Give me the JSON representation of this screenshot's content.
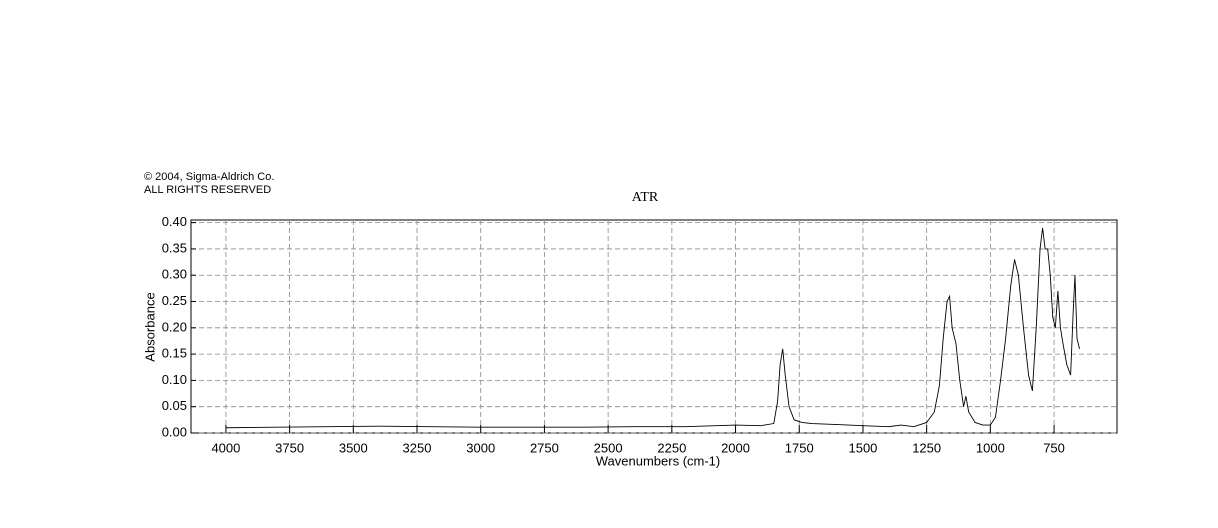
{
  "chart_data": {
    "type": "line",
    "title": "ATR",
    "annotations": [
      "© 2004, Sigma-Aldrich Co.",
      "ALL RIGHTS RESERVED"
    ],
    "xlabel": "Wavenumbers (cm-1)",
    "ylabel": "Absorbance",
    "xlim": [
      4137,
      503
    ],
    "ylim": [
      0,
      0.405
    ],
    "xticks": [
      4000,
      3750,
      3500,
      3250,
      3000,
      2750,
      2500,
      2250,
      2000,
      1750,
      1500,
      1250,
      1000,
      750
    ],
    "yticks": [
      {
        "value": 0,
        "label": "0.00"
      },
      {
        "value": 0.05,
        "label": "0.05"
      },
      {
        "value": 0.1,
        "label": "0.10"
      },
      {
        "value": 0.15,
        "label": "0.15"
      },
      {
        "value": 0.2,
        "label": "0.20"
      },
      {
        "value": 0.25,
        "label": "0.25"
      },
      {
        "value": 0.3,
        "label": "0.30"
      },
      {
        "value": 0.35,
        "label": "0.35"
      },
      {
        "value": 0.4,
        "label": "0.40"
      }
    ],
    "grid": true,
    "color": "#000000",
    "x": [
      4000,
      3800,
      3600,
      3400,
      3200,
      3000,
      2800,
      2600,
      2400,
      2200,
      2000,
      1900,
      1850,
      1835,
      1825,
      1815,
      1805,
      1790,
      1770,
      1740,
      1700,
      1600,
      1500,
      1400,
      1350,
      1300,
      1250,
      1220,
      1200,
      1185,
      1170,
      1160,
      1150,
      1135,
      1120,
      1105,
      1096,
      1085,
      1060,
      1030,
      1000,
      980,
      960,
      940,
      920,
      905,
      890,
      870,
      850,
      835,
      820,
      805,
      795,
      785,
      775,
      765,
      755,
      745,
      735,
      725,
      715,
      700,
      685,
      675,
      668,
      660,
      650
    ],
    "values": [
      0.01,
      0.011,
      0.012,
      0.013,
      0.012,
      0.011,
      0.011,
      0.011,
      0.012,
      0.012,
      0.015,
      0.014,
      0.018,
      0.06,
      0.13,
      0.16,
      0.11,
      0.05,
      0.025,
      0.02,
      0.018,
      0.016,
      0.014,
      0.012,
      0.015,
      0.012,
      0.02,
      0.04,
      0.09,
      0.18,
      0.25,
      0.26,
      0.2,
      0.17,
      0.1,
      0.05,
      0.07,
      0.04,
      0.02,
      0.015,
      0.015,
      0.03,
      0.1,
      0.18,
      0.28,
      0.33,
      0.3,
      0.2,
      0.11,
      0.08,
      0.2,
      0.35,
      0.39,
      0.35,
      0.35,
      0.3,
      0.22,
      0.2,
      0.27,
      0.2,
      0.17,
      0.13,
      0.11,
      0.23,
      0.3,
      0.18,
      0.16
    ]
  }
}
